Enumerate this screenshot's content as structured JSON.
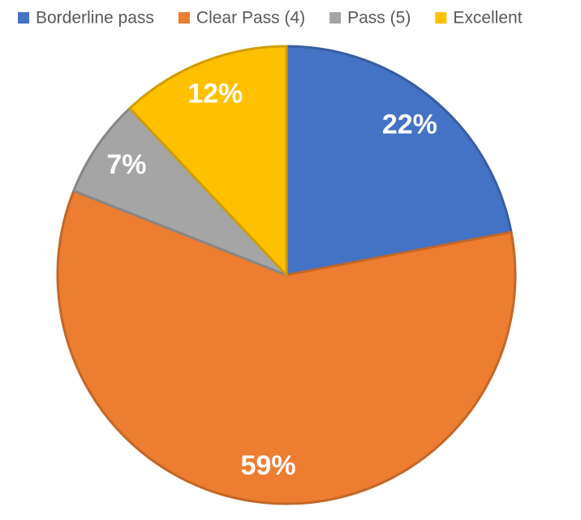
{
  "chart_data": {
    "type": "pie",
    "categories": [
      "Borderline pass",
      "Clear Pass (4)",
      "Pass (5)",
      "Excellent"
    ],
    "values": [
      22,
      59,
      7,
      12
    ],
    "value_labels": [
      "22%",
      "59%",
      "7%",
      "12%"
    ],
    "colors": [
      "#4472c4",
      "#ed7d31",
      "#a5a5a5",
      "#ffc000"
    ],
    "legend": "top"
  }
}
